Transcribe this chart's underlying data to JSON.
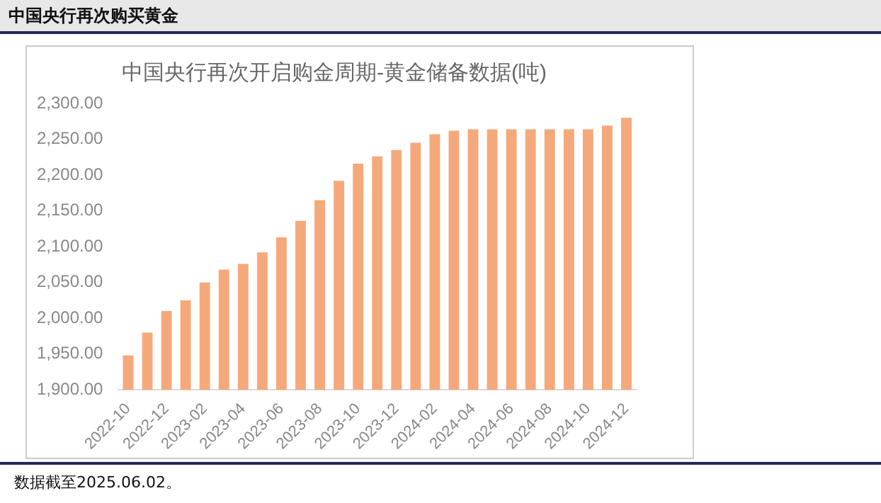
{
  "chart_data": {
    "type": "bar",
    "title": "中国央行再次购买黄金",
    "subtitle": "中国央行再次开启购金周期-黄金储备数据(吨)",
    "categories": [
      "2022-10",
      null,
      "2022-12",
      null,
      "2023-02",
      null,
      "2023-04",
      null,
      "2023-06",
      null,
      "2023-08",
      null,
      "2023-10",
      null,
      "2023-12",
      null,
      "2024-02",
      null,
      "2024-04",
      null,
      "2024-06",
      null,
      "2024-08",
      null,
      "2024-10",
      null,
      "2024-12"
    ],
    "values": [
      1948,
      1980,
      2010,
      2025,
      2050,
      2068,
      2076,
      2092,
      2113,
      2136,
      2165,
      2192,
      2216,
      2226,
      2235,
      2245,
      2257,
      2262,
      2264,
      2264,
      2264,
      2264,
      2264,
      2264,
      2264,
      2269,
      2280
    ],
    "color": "#f5a97b",
    "ylim": [
      1900,
      2300
    ],
    "yticks": [
      {
        "value": 1900,
        "label": "1,900.00"
      },
      {
        "value": 1950,
        "label": "1,950.00"
      },
      {
        "value": 2000,
        "label": "2,000.00"
      },
      {
        "value": 2050,
        "label": "2,050.00"
      },
      {
        "value": 2100,
        "label": "2,100.00"
      },
      {
        "value": 2150,
        "label": "2,150.00"
      },
      {
        "value": 2200,
        "label": "2,200.00"
      },
      {
        "value": 2250,
        "label": "2,250.00"
      },
      {
        "value": 2300,
        "label": "2,300.00"
      }
    ],
    "grid": false,
    "legend": false,
    "annotations": [
      "数据截至2025.06.02。"
    ]
  }
}
